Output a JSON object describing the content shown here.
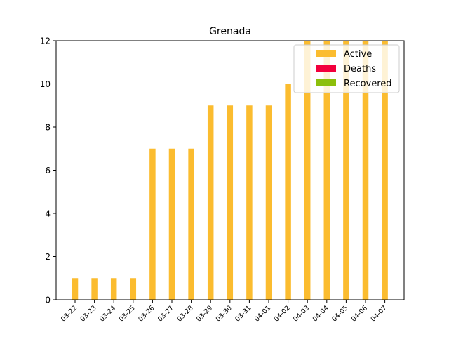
{
  "chart_data": {
    "type": "bar",
    "title": "Grenada",
    "xlabel": "",
    "ylabel": "",
    "ylim": [
      0,
      12
    ],
    "yticks": [
      0,
      2,
      4,
      6,
      8,
      10,
      12
    ],
    "categories": [
      "03-22",
      "03-23",
      "03-24",
      "03-25",
      "03-26",
      "03-27",
      "03-28",
      "03-29",
      "03-30",
      "03-31",
      "04-01",
      "04-02",
      "04-03",
      "04-04",
      "04-05",
      "04-06",
      "04-07"
    ],
    "series": [
      {
        "name": "Active",
        "color": "#fbbc2f",
        "values": [
          1,
          1,
          1,
          1,
          7,
          7,
          7,
          9,
          9,
          9,
          9,
          10,
          12,
          12,
          12,
          12,
          12
        ]
      },
      {
        "name": "Deaths",
        "color": "#f2003c",
        "values": [
          0,
          0,
          0,
          0,
          0,
          0,
          0,
          0,
          0,
          0,
          0,
          0,
          0,
          0,
          0,
          0,
          0
        ]
      },
      {
        "name": "Recovered",
        "color": "#8cbf0b",
        "values": [
          0,
          0,
          0,
          0,
          0,
          0,
          0,
          0,
          0,
          0,
          0,
          0,
          0,
          0,
          0,
          0,
          0
        ]
      }
    ],
    "legend_position": "top-right",
    "grid": false
  }
}
